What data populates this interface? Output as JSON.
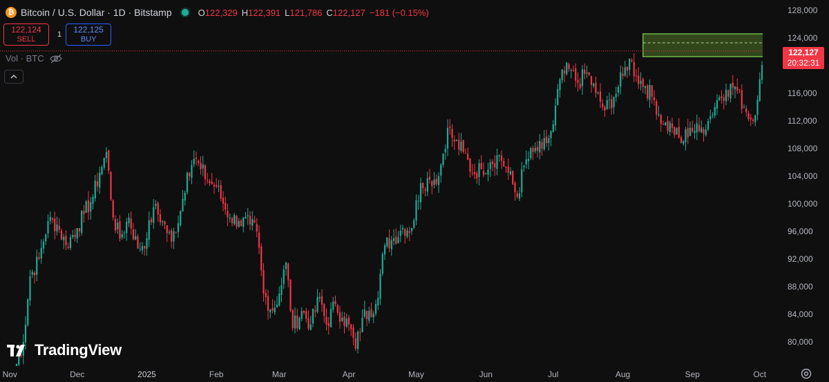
{
  "header": {
    "symbol": "Bitcoin / U.S. Dollar · 1D · Bitstamp",
    "icon": "bitcoin-icon",
    "ohlc": {
      "o_key": "O",
      "o_val": "122,329",
      "h_key": "H",
      "h_val": "122,391",
      "l_key": "L",
      "l_val": "121,786",
      "c_key": "C",
      "c_val": "122,127",
      "change": "−181 (−0.15%)"
    }
  },
  "trade": {
    "sell_price": "122,124",
    "sell_label": "SELL",
    "spread": "1",
    "buy_price": "122,125",
    "buy_label": "BUY"
  },
  "volume": {
    "label": "Vol · BTC"
  },
  "price_label": {
    "price": "122,127",
    "countdown": "20:32:31"
  },
  "watermark": {
    "text": "TradingView"
  },
  "colors": {
    "up": "#22ab94",
    "down": "#f23645",
    "background": "#0f0f0f",
    "box_fill": "#3f5a22",
    "box_border": "#6fb84a",
    "accent": "#2962ff"
  },
  "chart_data": {
    "type": "candlestick",
    "ylim": [
      76500,
      129500
    ],
    "y_ticks": [
      "128,000",
      "124,000",
      "120,000",
      "116,000",
      "112,000",
      "108,000",
      "104,000",
      "100,000",
      "96,000",
      "92,000",
      "88,000",
      "84,000",
      "80,000"
    ],
    "y_tick_values": [
      128000,
      124000,
      120000,
      116000,
      112000,
      108000,
      104000,
      100000,
      96000,
      92000,
      88000,
      84000,
      80000
    ],
    "x_ticks": [
      "Nov",
      "Dec",
      "2025",
      "Feb",
      "Mar",
      "Apr",
      "May",
      "Jun",
      "Jul",
      "Aug",
      "Sep",
      "Oct"
    ],
    "x_tick_days": [
      -3,
      27,
      58,
      89,
      117,
      148,
      178,
      209,
      239,
      270,
      301,
      331
    ],
    "last_price": 122127,
    "price_zone": {
      "from_day": 279,
      "to_day": 335,
      "low": 121300,
      "high": 124600,
      "mid": 123300
    },
    "anchors": [
      [
        -1,
        75800
      ],
      [
        3,
        80000
      ],
      [
        6,
        89500
      ],
      [
        10,
        92000
      ],
      [
        14,
        97500
      ],
      [
        18,
        97000
      ],
      [
        22,
        94000
      ],
      [
        27,
        96500
      ],
      [
        30,
        98500
      ],
      [
        34,
        101000
      ],
      [
        37,
        104500
      ],
      [
        40,
        107500
      ],
      [
        43,
        98000
      ],
      [
        46,
        95000
      ],
      [
        50,
        98000
      ],
      [
        54,
        93500
      ],
      [
        58,
        95000
      ],
      [
        61,
        99500
      ],
      [
        65,
        97500
      ],
      [
        69,
        94500
      ],
      [
        73,
        99000
      ],
      [
        76,
        104500
      ],
      [
        79,
        106500
      ],
      [
        82,
        105000
      ],
      [
        86,
        103000
      ],
      [
        89,
        102500
      ],
      [
        92,
        100000
      ],
      [
        95,
        98000
      ],
      [
        99,
        97500
      ],
      [
        104,
        97000
      ],
      [
        107,
        96000
      ],
      [
        110,
        87000
      ],
      [
        114,
        84500
      ],
      [
        117,
        87000
      ],
      [
        120,
        91500
      ],
      [
        123,
        82000
      ],
      [
        127,
        84500
      ],
      [
        131,
        82500
      ],
      [
        135,
        86500
      ],
      [
        138,
        82500
      ],
      [
        142,
        85500
      ],
      [
        145,
        83500
      ],
      [
        148,
        82500
      ],
      [
        151,
        79000
      ],
      [
        154,
        83500
      ],
      [
        157,
        84500
      ],
      [
        160,
        85500
      ],
      [
        164,
        94000
      ],
      [
        168,
        95000
      ],
      [
        172,
        96500
      ],
      [
        176,
        96500
      ],
      [
        180,
        103000
      ],
      [
        184,
        103500
      ],
      [
        188,
        104000
      ],
      [
        192,
        111000
      ],
      [
        195,
        109000
      ],
      [
        199,
        107500
      ],
      [
        203,
        104500
      ],
      [
        207,
        105000
      ],
      [
        211,
        106000
      ],
      [
        215,
        107000
      ],
      [
        219,
        104500
      ],
      [
        223,
        101000
      ],
      [
        226,
        105500
      ],
      [
        230,
        107500
      ],
      [
        234,
        108000
      ],
      [
        237,
        109500
      ],
      [
        239,
        111500
      ],
      [
        242,
        118000
      ],
      [
        246,
        119500
      ],
      [
        250,
        117500
      ],
      [
        254,
        119000
      ],
      [
        258,
        116000
      ],
      [
        262,
        113500
      ],
      [
        266,
        115500
      ],
      [
        270,
        118500
      ],
      [
        273,
        121000
      ],
      [
        276,
        118500
      ],
      [
        280,
        117000
      ],
      [
        284,
        115000
      ],
      [
        288,
        111500
      ],
      [
        292,
        111000
      ],
      [
        296,
        108800
      ],
      [
        300,
        111000
      ],
      [
        304,
        110500
      ],
      [
        308,
        112000
      ],
      [
        312,
        115000
      ],
      [
        316,
        116500
      ],
      [
        320,
        117000
      ],
      [
        324,
        114000
      ],
      [
        328,
        112000
      ],
      [
        331,
        118000
      ],
      [
        333,
        121000
      ],
      [
        334,
        122127
      ]
    ]
  }
}
